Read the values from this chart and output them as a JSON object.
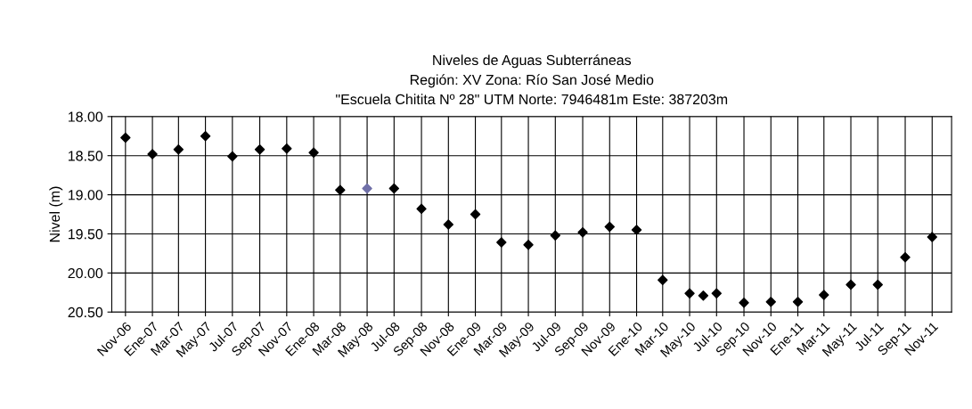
{
  "chart_data": {
    "type": "scatter",
    "title": "Niveles de Aguas Subterráneas\nRegión: XV Zona: Río San José Medio\n\"Escuela Chitita Nº 28\" UTM Norte: 7946481m Este: 387203m",
    "ylabel": "Nivel (m)",
    "x": [
      "2006-11",
      "2007-01",
      "2007-03",
      "2007-05",
      "2007-07",
      "2007-09",
      "2007-11",
      "2008-01",
      "2008-03",
      "2008-05",
      "2008-07",
      "2008-09",
      "2008-11",
      "2009-01",
      "2009-03",
      "2009-05",
      "2009-07",
      "2009-09",
      "2009-11",
      "2010-01",
      "2010-03",
      "2010-05",
      "2010-06",
      "2010-07",
      "2010-09",
      "2010-11",
      "2011-01",
      "2011-03",
      "2011-05",
      "2011-07",
      "2011-09",
      "2011-11"
    ],
    "series": [
      {
        "values": [
          18.27,
          18.48,
          18.42,
          18.25,
          18.51,
          18.42,
          18.41,
          18.46,
          18.94,
          18.92,
          18.92,
          19.18,
          19.38,
          19.25,
          19.61,
          19.64,
          19.52,
          19.48,
          19.41,
          19.45,
          20.09,
          20.26,
          20.29,
          20.26,
          20.38,
          20.37,
          20.37,
          20.28,
          20.15,
          20.15,
          19.8,
          19.54
        ],
        "colors": [
          "#000000",
          "#000000",
          "#000000",
          "#000000",
          "#000000",
          "#000000",
          "#000000",
          "#000000",
          "#000000",
          "#7070a8",
          "#000000",
          "#000000",
          "#000000",
          "#000000",
          "#000000",
          "#000000",
          "#000000",
          "#000000",
          "#000000",
          "#000000",
          "#000000",
          "#000000",
          "#000000",
          "#000000",
          "#000000",
          "#000000",
          "#000000",
          "#000000",
          "#000000",
          "#000000",
          "#000000",
          "#000000"
        ]
      }
    ],
    "marker": "diamond",
    "ylim": [
      20.5,
      18.0
    ],
    "yticks": [
      {
        "value": 18.0,
        "label": "18.00"
      },
      {
        "value": 18.5,
        "label": "18.50"
      },
      {
        "value": 19.0,
        "label": "19.00"
      },
      {
        "value": 19.5,
        "label": "19.50"
      },
      {
        "value": 20.0,
        "label": "20.00"
      },
      {
        "value": 20.5,
        "label": "20.50"
      }
    ],
    "xlim": [
      "2006-10-01",
      "2011-12-15"
    ],
    "xticks": [
      {
        "value": "2006-11",
        "label": "Nov-06"
      },
      {
        "value": "2007-01",
        "label": "Ene-07"
      },
      {
        "value": "2007-03",
        "label": "Mar-07"
      },
      {
        "value": "2007-05",
        "label": "May-07"
      },
      {
        "value": "2007-07",
        "label": "Jul-07"
      },
      {
        "value": "2007-09",
        "label": "Sep-07"
      },
      {
        "value": "2007-11",
        "label": "Nov-07"
      },
      {
        "value": "2008-01",
        "label": "Ene-08"
      },
      {
        "value": "2008-03",
        "label": "Mar-08"
      },
      {
        "value": "2008-05",
        "label": "May-08"
      },
      {
        "value": "2008-07",
        "label": "Jul-08"
      },
      {
        "value": "2008-09",
        "label": "Sep-08"
      },
      {
        "value": "2008-11",
        "label": "Nov-08"
      },
      {
        "value": "2009-01",
        "label": "Ene-09"
      },
      {
        "value": "2009-03",
        "label": "Mar-09"
      },
      {
        "value": "2009-05",
        "label": "May-09"
      },
      {
        "value": "2009-07",
        "label": "Jul-09"
      },
      {
        "value": "2009-09",
        "label": "Sep-09"
      },
      {
        "value": "2009-11",
        "label": "Nov-09"
      },
      {
        "value": "2010-01",
        "label": "Ene-10"
      },
      {
        "value": "2010-03",
        "label": "Mar-10"
      },
      {
        "value": "2010-05",
        "label": "May-10"
      },
      {
        "value": "2010-07",
        "label": "Jul-10"
      },
      {
        "value": "2010-09",
        "label": "Sep-10"
      },
      {
        "value": "2010-11",
        "label": "Nov-10"
      },
      {
        "value": "2011-01",
        "label": "Ene-11"
      },
      {
        "value": "2011-03",
        "label": "Mar-11"
      },
      {
        "value": "2011-05",
        "label": "May-11"
      },
      {
        "value": "2011-07",
        "label": "Jul-11"
      },
      {
        "value": "2011-09",
        "label": "Sep-11"
      },
      {
        "value": "2011-11",
        "label": "Nov-11"
      }
    ],
    "grid": true
  }
}
